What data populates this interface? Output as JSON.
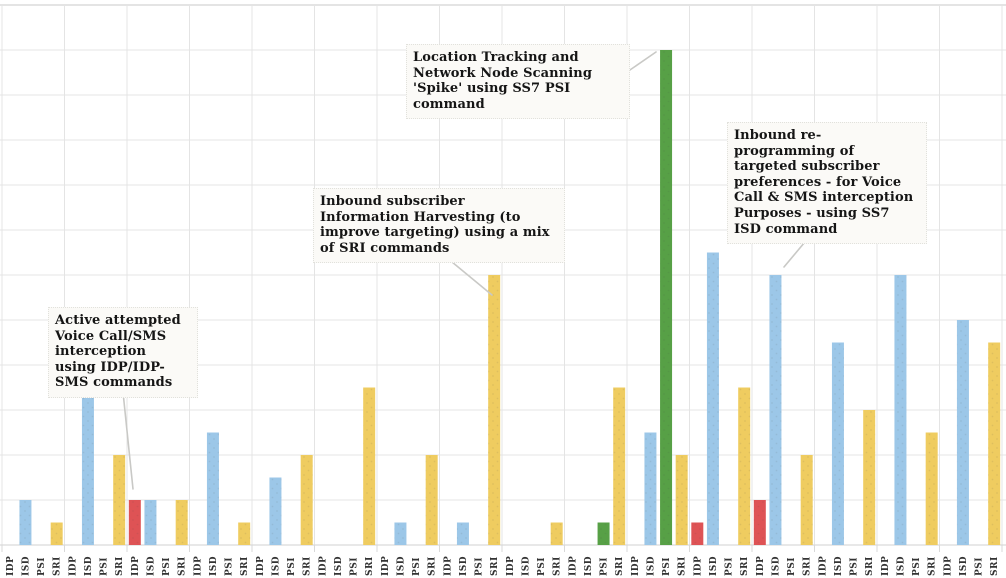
{
  "chart_data": {
    "type": "bar",
    "title": "",
    "description": "Grouped bar chart of SS7 command activity; 16 unlabeled time-period groups, each with IDP / ISD / PSI / SRI bars. No y-axis tick labels visible; values estimated with one gridline division = 2 events.",
    "x_axis": {
      "group_count": 16,
      "command_labels_per_group": [
        "IDP",
        "ISD",
        "PSI",
        "SRI"
      ],
      "tick_label_rotation_deg": -90
    },
    "y_axis": {
      "min": 0,
      "max": 24,
      "grid_step": 2,
      "tick_labels_visible": false
    },
    "grid": true,
    "legend": "none",
    "series": [
      {
        "name": "IDP",
        "color": "#DE5355",
        "values": [
          0,
          0,
          2,
          0,
          0,
          0,
          0,
          0,
          0,
          0,
          0,
          1,
          2,
          0,
          0,
          0
        ]
      },
      {
        "name": "ISD",
        "color": "#9CC7E8",
        "values": [
          2,
          7,
          2,
          5,
          3,
          0,
          1,
          1,
          0,
          0,
          5,
          13,
          12,
          9,
          12,
          10
        ]
      },
      {
        "name": "PSI",
        "color": "#57A046",
        "values": [
          0,
          0,
          0,
          0,
          0,
          0,
          0,
          0,
          0,
          1,
          22,
          0,
          0,
          0,
          0,
          0
        ]
      },
      {
        "name": "SRI",
        "color": "#EFCC60",
        "values": [
          1,
          4,
          2,
          1,
          4,
          7,
          4,
          12,
          1,
          7,
          4,
          7,
          4,
          6,
          5,
          9
        ]
      }
    ],
    "annotations": [
      {
        "text": "Location Tracking and Network Node Scanning 'Spike' using SS7 PSI command",
        "points_to": "tall green PSI bar, group 11"
      },
      {
        "text": "Inbound subscriber Information Harvesting  (to improve targeting) using a mix of SRI commands",
        "points_to": "tall yellow SRI bar, group 8"
      },
      {
        "text": "Inbound re-programming of targeted subscriber preferences - for Voice Call & SMS interception Purposes - using SS7 ISD command",
        "points_to": "tall blue ISD bar, group 13"
      },
      {
        "text": "Active attempted Voice Call/SMS interception using IDP/IDP-SMS commands",
        "points_to": "red IDP bar, group 3"
      }
    ],
    "colors": {
      "idp_red": "#DE5355",
      "isd_blue": "#9CC7E8",
      "psi_green": "#57A046",
      "sri_yellow": "#EFCC60",
      "gridline": "#e4e4e4",
      "axis_line": "#d9d9d9",
      "top_border": "#c8c8c8",
      "leader_line": "#c9c9c6",
      "axis_label_text": "#333333"
    }
  }
}
